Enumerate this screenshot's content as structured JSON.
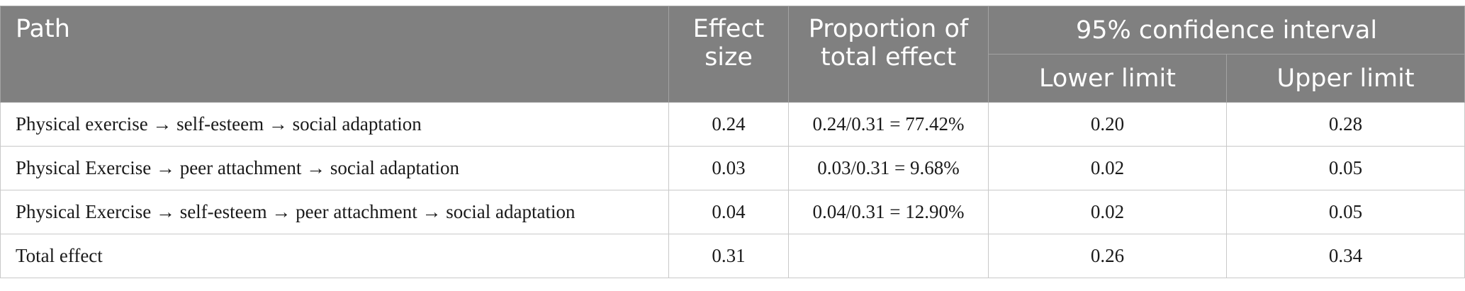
{
  "header": {
    "path": "Path",
    "effect_size_line1": "Effect",
    "effect_size_line2": "size",
    "proportion_line1": "Proportion of",
    "proportion_line2": "total effect",
    "ci": "95% confidence interval",
    "lower": "Lower limit",
    "upper": "Upper limit"
  },
  "rows": [
    {
      "path": "Physical exercise → self-esteem → social adaptation",
      "effect": "0.24",
      "proportion": "0.24/0.31 = 77.42%",
      "lower": "0.20",
      "upper": "0.28"
    },
    {
      "path": "Physical Exercise → peer attachment → social adaptation",
      "effect": "0.03",
      "proportion": "0.03/0.31 = 9.68%",
      "lower": "0.02",
      "upper": "0.05"
    },
    {
      "path": "Physical Exercise → self-esteem → peer attachment → social adaptation",
      "effect": "0.04",
      "proportion": "0.04/0.31 = 12.90%",
      "lower": "0.02",
      "upper": "0.05"
    },
    {
      "path": "Total effect",
      "effect": "0.31",
      "proportion": "",
      "lower": "0.26",
      "upper": "0.34"
    }
  ]
}
